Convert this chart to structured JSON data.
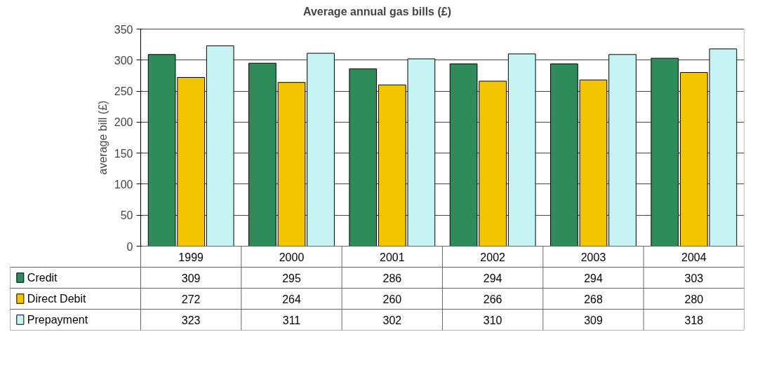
{
  "chart_data": {
    "type": "bar",
    "title": "Average annual gas bills (£)",
    "ylabel": "average bill (£)",
    "categories": [
      "1999",
      "2000",
      "2001",
      "2002",
      "2003",
      "2004"
    ],
    "series": [
      {
        "name": "Credit",
        "color": "#2e8b5a",
        "values": [
          309,
          295,
          286,
          294,
          294,
          303
        ]
      },
      {
        "name": "Direct Debit",
        "color": "#f5c400",
        "values": [
          272,
          264,
          260,
          266,
          268,
          280
        ]
      },
      {
        "name": "Prepayment",
        "color": "#c6f4f4",
        "values": [
          323,
          311,
          302,
          310,
          309,
          318
        ]
      }
    ],
    "ylim": [
      0,
      350
    ],
    "yticks": [
      0,
      50,
      100,
      150,
      200,
      250,
      300,
      350
    ],
    "grid": "y",
    "legend": "bottom",
    "data_labels": true
  }
}
